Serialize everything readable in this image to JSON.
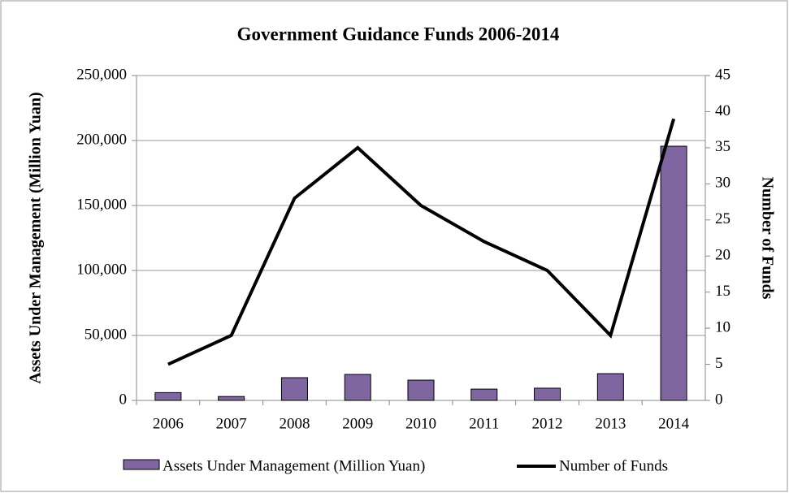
{
  "chart_data": {
    "type": "bar-line",
    "title": "Government Guidance Funds 2006-2014",
    "y_label": "Assets Under Management (Million Yuan)",
    "y2_label": "Number of Funds",
    "categories": [
      "2006",
      "2007",
      "2008",
      "2009",
      "2010",
      "2011",
      "2012",
      "2013",
      "2014"
    ],
    "series": [
      {
        "name": "Assets Under Management (Million Yuan)",
        "type": "bar",
        "color": "#8066a0",
        "values": [
          6000,
          3000,
          17500,
          20000,
          15600,
          8700,
          9400,
          20600,
          195600
        ]
      },
      {
        "name": "Number of Funds",
        "type": "line",
        "color": "#000000",
        "axis": "y2",
        "values": [
          5,
          9,
          28,
          35,
          27,
          22,
          18,
          9,
          39
        ]
      }
    ],
    "ylim": [
      0,
      250000
    ],
    "yticks": [
      0,
      {
        "value": 50000,
        "label": "50,000"
      },
      {
        "value": 100000,
        "label": "100,000"
      },
      {
        "value": 150000,
        "label": "150,000"
      },
      {
        "value": 200000,
        "label": "200,000"
      },
      {
        "value": 250000,
        "label": "250,000"
      }
    ],
    "y2lim": [
      0,
      45
    ],
    "y2ticks": [
      0,
      5,
      10,
      15,
      20,
      25,
      30,
      35,
      40,
      45
    ],
    "grid": true,
    "legend": "bottom"
  }
}
